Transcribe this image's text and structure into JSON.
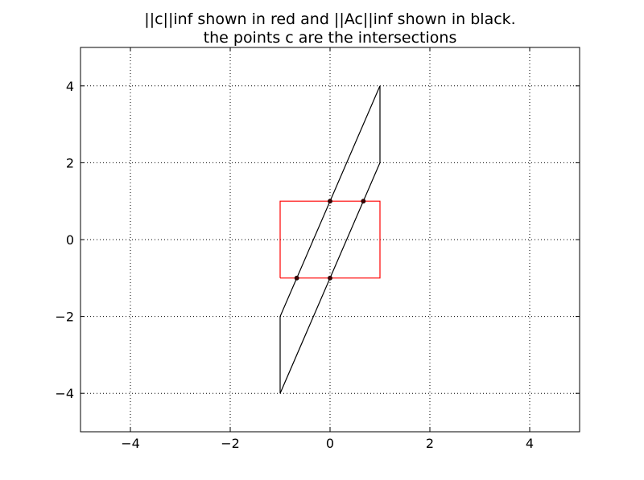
{
  "chart_data": {
    "type": "line",
    "title": "||c||inf shown in red and ||Ac||inf shown in black.",
    "subtitle": "the points c are the intersections",
    "xlabel": "",
    "ylabel": "",
    "xlim": [
      -5,
      5
    ],
    "ylim": [
      -5,
      5
    ],
    "grid": true,
    "xticks": [
      -4,
      -2,
      0,
      2,
      4
    ],
    "yticks": [
      -4,
      -2,
      0,
      2,
      4
    ],
    "xtick_labels": [
      "−4",
      "−2",
      "0",
      "2",
      "4"
    ],
    "ytick_labels": [
      "−4",
      "−2",
      "0",
      "2",
      "4"
    ],
    "series": [
      {
        "color": "#ff0000",
        "x": [
          -1,
          1,
          1,
          -1,
          -1
        ],
        "y": [
          -1,
          -1,
          1,
          1,
          -1
        ]
      },
      {
        "color": "#000000",
        "x": [
          1,
          1,
          -1,
          -1,
          1
        ],
        "y": [
          4,
          2,
          -4,
          -2,
          4
        ]
      }
    ],
    "points": {
      "color": "#400000",
      "x": [
        0,
        0.667,
        -0.667,
        0
      ],
      "y": [
        1,
        1,
        -1,
        -1
      ]
    }
  }
}
